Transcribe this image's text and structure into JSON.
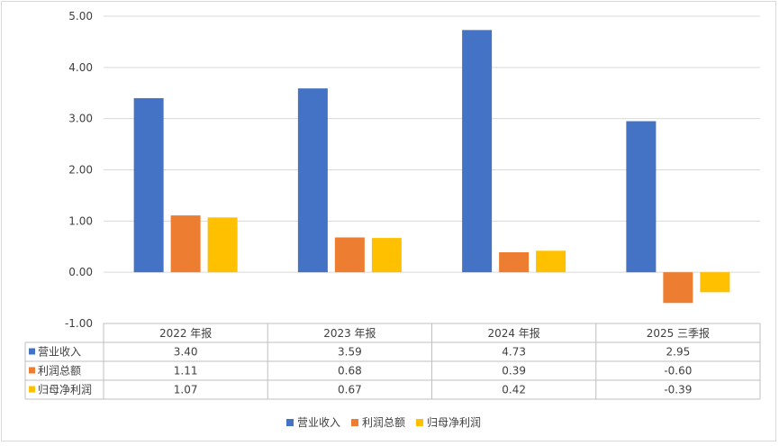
{
  "chart_data": {
    "type": "bar",
    "categories": [
      "2022 年报",
      "2023 年报",
      "2024 年报",
      "2025 三季报"
    ],
    "series": [
      {
        "name": "营业收入",
        "color": "#4472C4",
        "values": [
          3.4,
          3.59,
          4.73,
          2.95
        ]
      },
      {
        "name": "利润总额",
        "color": "#ED7D31",
        "values": [
          1.11,
          0.68,
          0.39,
          -0.6
        ]
      },
      {
        "name": "归母净利润",
        "color": "#FFC000",
        "values": [
          1.07,
          0.67,
          0.42,
          -0.39
        ]
      }
    ],
    "value_labels": [
      [
        "3.40",
        "3.59",
        "4.73",
        "2.95"
      ],
      [
        "1.11",
        "0.68",
        "0.39",
        "-0.60"
      ],
      [
        "1.07",
        "0.67",
        "0.42",
        "-0.39"
      ]
    ],
    "yticks": [
      "5.00",
      "4.00",
      "3.00",
      "2.00",
      "1.00",
      "0.00",
      "-1.00"
    ],
    "ylim": [
      -1,
      5
    ],
    "grid": true,
    "legend": "bottom",
    "data_table": true
  }
}
